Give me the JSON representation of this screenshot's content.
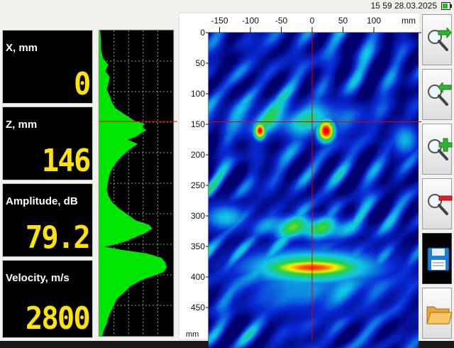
{
  "status_bar": {
    "clock": "15 59 28.03.2025",
    "battery_icon": "battery-icon"
  },
  "readouts": [
    {
      "label": "X, mm",
      "value": "0"
    },
    {
      "label": "Z, mm",
      "value": "146"
    },
    {
      "label": "Amplitude, dB",
      "value": "79.2"
    },
    {
      "label": "Velocity, m/s",
      "value": "2800"
    }
  ],
  "tomogram": {
    "x_unit": "mm",
    "z_unit": "mm",
    "x_ticks": [
      -150,
      -100,
      -50,
      0,
      50,
      100
    ],
    "z_ticks": [
      0,
      50,
      100,
      150,
      200,
      250,
      300,
      350,
      400,
      450
    ],
    "x_range": [
      -170,
      160
    ],
    "z_range": [
      0,
      490
    ],
    "cursor": {
      "x": 0,
      "z": 146
    },
    "palette": [
      "#00006e",
      "#0a2cd8",
      "#11c8e6",
      "#28d23c",
      "#fff200",
      "#ff0000"
    ],
    "reflectors": [
      {
        "x": -85,
        "z": 160,
        "level": 1.0
      },
      {
        "x": 22,
        "z": 160,
        "level": 1.0
      },
      {
        "x": -10,
        "z": 318,
        "level": 0.6
      },
      {
        "x": 0,
        "z": 384,
        "level": 1.0
      }
    ]
  },
  "profile": {
    "color": "#00e600",
    "z_range": [
      0,
      490
    ],
    "points": [
      [
        0,
        0.01
      ],
      [
        15,
        0.02
      ],
      [
        30,
        0.02
      ],
      [
        45,
        0.05
      ],
      [
        55,
        0.12
      ],
      [
        65,
        0.08
      ],
      [
        75,
        0.14
      ],
      [
        85,
        0.12
      ],
      [
        95,
        0.1
      ],
      [
        105,
        0.14
      ],
      [
        115,
        0.17
      ],
      [
        125,
        0.22
      ],
      [
        135,
        0.35
      ],
      [
        145,
        0.48
      ],
      [
        150,
        0.62
      ],
      [
        155,
        0.58
      ],
      [
        160,
        0.64
      ],
      [
        165,
        0.56
      ],
      [
        170,
        0.5
      ],
      [
        175,
        0.38
      ],
      [
        182,
        0.52
      ],
      [
        190,
        0.42
      ],
      [
        200,
        0.32
      ],
      [
        210,
        0.24
      ],
      [
        220,
        0.18
      ],
      [
        230,
        0.14
      ],
      [
        240,
        0.12
      ],
      [
        255,
        0.1
      ],
      [
        265,
        0.12
      ],
      [
        275,
        0.17
      ],
      [
        285,
        0.26
      ],
      [
        295,
        0.38
      ],
      [
        305,
        0.5
      ],
      [
        312,
        0.68
      ],
      [
        318,
        0.72
      ],
      [
        325,
        0.62
      ],
      [
        332,
        0.48
      ],
      [
        338,
        0.36
      ],
      [
        343,
        0.22
      ],
      [
        347,
        0.06
      ],
      [
        352,
        0.3
      ],
      [
        358,
        0.65
      ],
      [
        365,
        0.85
      ],
      [
        372,
        0.9
      ],
      [
        380,
        0.92
      ],
      [
        387,
        0.88
      ],
      [
        393,
        0.75
      ],
      [
        400,
        0.58
      ],
      [
        410,
        0.42
      ],
      [
        420,
        0.34
      ],
      [
        430,
        0.24
      ],
      [
        440,
        0.2
      ],
      [
        450,
        0.16
      ],
      [
        460,
        0.12
      ],
      [
        470,
        0.1
      ],
      [
        480,
        0.06
      ],
      [
        490,
        0.04
      ]
    ]
  },
  "toolbar": [
    {
      "name": "zoom-next-button",
      "icon": "magnifier-arrow-right-icon",
      "active": false
    },
    {
      "name": "zoom-prev-button",
      "icon": "magnifier-arrow-left-icon",
      "active": false
    },
    {
      "name": "zoom-in-button",
      "icon": "magnifier-plus-icon",
      "active": false
    },
    {
      "name": "zoom-out-button",
      "icon": "magnifier-minus-icon",
      "active": false
    },
    {
      "name": "save-button",
      "icon": "floppy-disk-icon",
      "active": true
    },
    {
      "name": "open-folder-button",
      "icon": "folder-icon",
      "active": false
    }
  ]
}
